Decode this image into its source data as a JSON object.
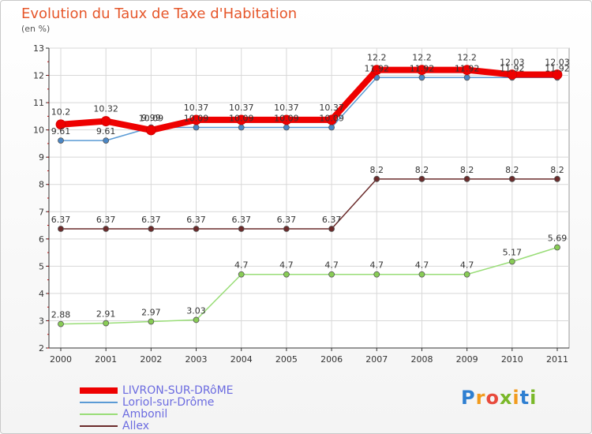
{
  "chart_data": {
    "type": "line",
    "title": "Evolution du Taux de Taxe d'Habitation",
    "subtitle": "(en %)",
    "xlabel": "",
    "ylabel": "",
    "categories": [
      "2000",
      "2001",
      "2002",
      "2003",
      "2004",
      "2005",
      "2006",
      "2007",
      "2008",
      "2009",
      "2010",
      "2011"
    ],
    "ylim": [
      2,
      13
    ],
    "yticks": [
      2,
      3,
      4,
      5,
      6,
      7,
      8,
      9,
      10,
      11,
      12,
      13
    ],
    "series": [
      {
        "name": "LIVRON-SUR-DRôME",
        "color": "#ee0000",
        "values": [
          10.2,
          10.32,
          9.99,
          10.37,
          10.37,
          10.37,
          10.37,
          12.2,
          12.2,
          12.2,
          12.03,
          12.03
        ],
        "labels": [
          "10.2",
          "10.32",
          "9.99",
          "10.37",
          "10.37",
          "10.37",
          "10.37",
          "12.2",
          "12.2",
          "12.2",
          "12.03",
          "12.03"
        ]
      },
      {
        "name": "Loriol-sur-Drôme",
        "color": "#5b9bd5",
        "values": [
          9.61,
          9.61,
          10.09,
          10.09,
          10.09,
          10.09,
          10.09,
          11.92,
          11.92,
          11.92,
          11.92,
          11.92
        ],
        "labels": [
          "9.61",
          "9.61",
          "10.09",
          "10.09",
          "10.09",
          "10.09",
          "10.09",
          "11.92",
          "11.92",
          "11.92",
          "11.92",
          "11.92"
        ]
      },
      {
        "name": "Ambonil",
        "color": "#99dd77",
        "values": [
          2.88,
          2.91,
          2.97,
          3.03,
          4.7,
          4.7,
          4.7,
          4.7,
          4.7,
          4.7,
          5.17,
          5.69
        ],
        "labels": [
          "2.88",
          "2.91",
          "2.97",
          "3.03",
          "4.7",
          "4.7",
          "4.7",
          "4.7",
          "4.7",
          "4.7",
          "5.17",
          "5.69"
        ]
      },
      {
        "name": "Allex",
        "color": "#6b2b2b",
        "values": [
          6.37,
          6.37,
          6.37,
          6.37,
          6.37,
          6.37,
          6.37,
          8.2,
          8.2,
          8.2,
          8.2,
          8.2
        ],
        "labels": [
          "6.37",
          "6.37",
          "6.37",
          "6.37",
          "6.37",
          "6.37",
          "6.37",
          "8.2",
          "8.2",
          "8.2",
          "8.2",
          "8.2"
        ]
      }
    ],
    "grid": true,
    "legend": "bottom-left"
  },
  "logo": {
    "letters": [
      "P",
      "r",
      "o",
      "x",
      "i",
      "t",
      "i"
    ],
    "colors": [
      "#2e7fd1",
      "#f29b1d",
      "#e84a3c",
      "#7ab829",
      "#f29b1d",
      "#2e7fd1",
      "#7ab829"
    ]
  }
}
